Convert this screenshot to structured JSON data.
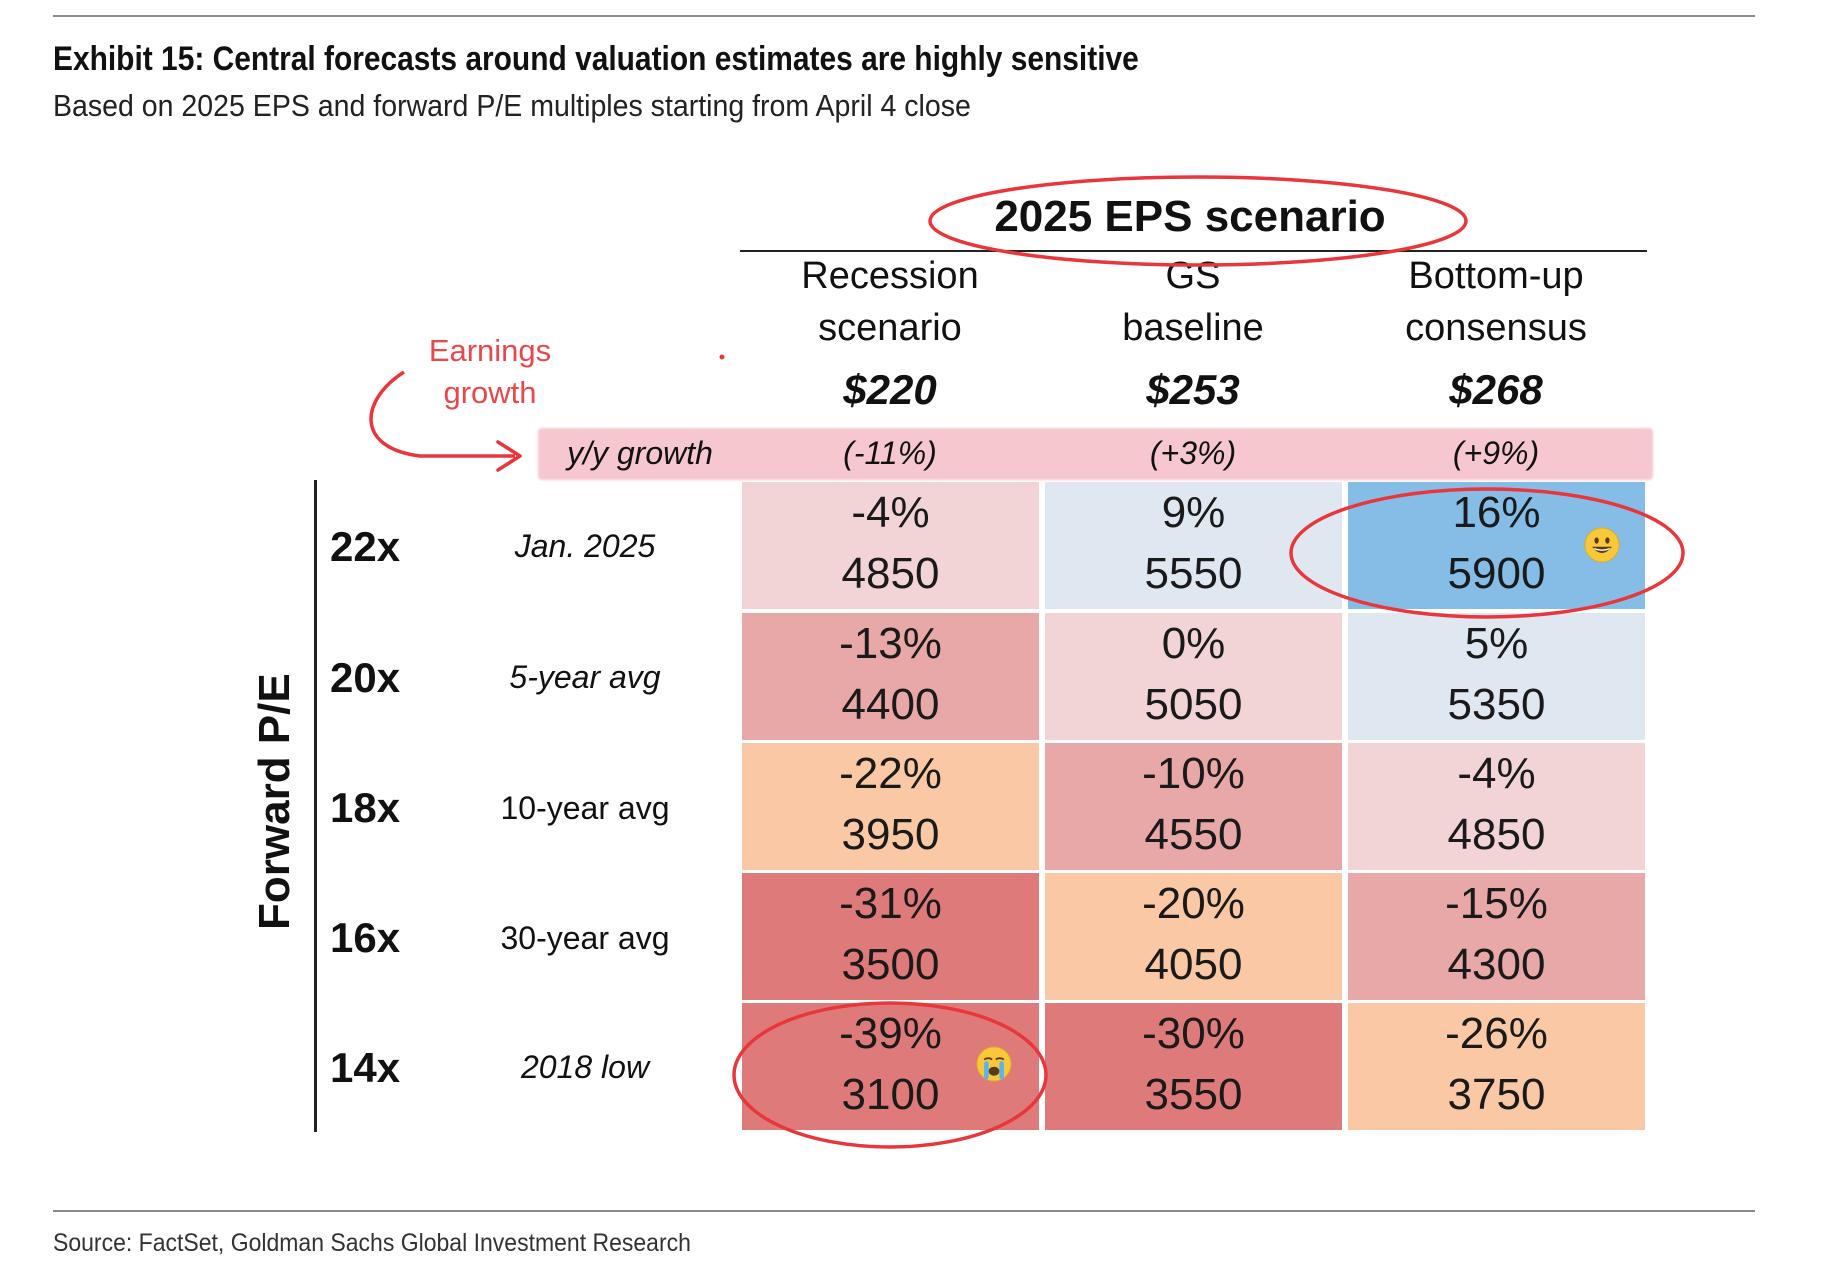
{
  "header": {
    "title": "Exhibit 15: Central forecasts around valuation estimates are highly sensitive",
    "subtitle": "Based on 2025 EPS and forward P/E multiples starting from April 4 close"
  },
  "footer": {
    "source": "Source: FactSet, Goldman Sachs Global Investment Research"
  },
  "annotations": {
    "earnings_growth": [
      "Earnings",
      "growth"
    ]
  },
  "chart_data": {
    "type": "table",
    "column_group_title": "2025 EPS scenario",
    "row_axis_label": "Forward P/E",
    "growth_row_label": "y/y growth",
    "columns": [
      {
        "name_lines": [
          "Recession",
          "scenario"
        ],
        "eps": "$220",
        "growth": "(-11%)"
      },
      {
        "name_lines": [
          "GS",
          "baseline"
        ],
        "eps": "$253",
        "growth": "(+3%)"
      },
      {
        "name_lines": [
          "Bottom-up",
          "consensus"
        ],
        "eps": "$268",
        "growth": "(+9%)"
      }
    ],
    "rows": [
      {
        "multiple": "22x",
        "label": "Jan. 2025",
        "label_italic": true
      },
      {
        "multiple": "20x",
        "label": "5-year avg",
        "label_italic": true
      },
      {
        "multiple": "18x",
        "label": "10-year avg",
        "label_italic": false
      },
      {
        "multiple": "16x",
        "label": "30-year avg",
        "label_italic": false
      },
      {
        "multiple": "14x",
        "label": "2018 low",
        "label_italic": true
      }
    ],
    "cells": [
      [
        {
          "pct": "-4%",
          "level": "4850",
          "color": "#f3d4d6"
        },
        {
          "pct": "9%",
          "level": "5550",
          "color": "#dfe7f1"
        },
        {
          "pct": "16%",
          "level": "5900",
          "color": "#85bde7"
        }
      ],
      [
        {
          "pct": "-13%",
          "level": "4400",
          "color": "#e8a8a8"
        },
        {
          "pct": "0%",
          "level": "5050",
          "color": "#f3d4d6"
        },
        {
          "pct": "5%",
          "level": "5350",
          "color": "#dfe7f1"
        }
      ],
      [
        {
          "pct": "-22%",
          "level": "3950",
          "color": "#fac8a5"
        },
        {
          "pct": "-10%",
          "level": "4550",
          "color": "#e8a8a8"
        },
        {
          "pct": "-4%",
          "level": "4850",
          "color": "#f3d4d6"
        }
      ],
      [
        {
          "pct": "-31%",
          "level": "3500",
          "color": "#df7a7b"
        },
        {
          "pct": "-20%",
          "level": "4050",
          "color": "#fac8a5"
        },
        {
          "pct": "-15%",
          "level": "4300",
          "color": "#e8a8a8"
        }
      ],
      [
        {
          "pct": "-39%",
          "level": "3100",
          "color": "#df7a7b"
        },
        {
          "pct": "-30%",
          "level": "3550",
          "color": "#df7a7b"
        },
        {
          "pct": "-26%",
          "level": "3750",
          "color": "#fac8a5"
        }
      ]
    ]
  }
}
